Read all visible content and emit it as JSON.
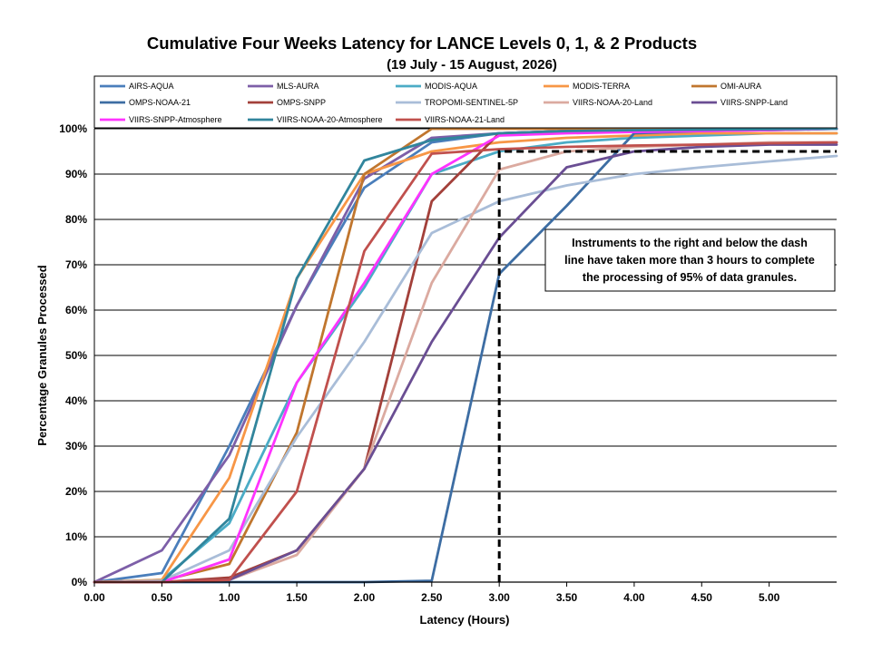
{
  "chart_data": {
    "type": "line",
    "title": "Cumulative Four Weeks Latency  for LANCE Levels 0, 1, & 2 Products",
    "subtitle": "(19  July   -  15  August,  2026)",
    "xlabel": "Latency (Hours)",
    "ylabel": "Percentage Granules Processed",
    "xlim": [
      0,
      5.5
    ],
    "ylim": [
      0,
      100
    ],
    "x_ticks": [
      "0.00",
      "0.50",
      "1.00",
      "1.50",
      "2.00",
      "2.50",
      "3.00",
      "3.50",
      "4.00",
      "4.50",
      "5.00"
    ],
    "y_ticks": [
      "0%",
      "10%",
      "20%",
      "30%",
      "40%",
      "50%",
      "60%",
      "70%",
      "80%",
      "90%",
      "100%"
    ],
    "grid": "horizontal",
    "legend_position": "top",
    "annotation": {
      "lines": [
        "Instruments to the right and below the dash",
        "line have taken more than 3 hours to complete",
        "the processing of 95% of data granules."
      ],
      "threshold_x": 3.0,
      "threshold_y": 95
    },
    "x": [
      0,
      0.5,
      1.0,
      1.5,
      2.0,
      2.5,
      3.0,
      3.5,
      4.0,
      4.5,
      5.0,
      5.5
    ],
    "series": [
      {
        "name": "AIRS-AQUA",
        "color": "#4a7ebb",
        "values": [
          0,
          2,
          30,
          61,
          87,
          97,
          99,
          99.5,
          99.7,
          99.8,
          99.9,
          100
        ]
      },
      {
        "name": "MLS-AURA",
        "color": "#7d5fa8",
        "values": [
          0,
          7,
          28,
          61,
          89,
          98,
          99,
          99.5,
          99.7,
          99.8,
          99.9,
          100
        ]
      },
      {
        "name": "MODIS-AQUA",
        "color": "#4bacc6",
        "values": [
          0,
          0.5,
          13,
          44,
          65,
          90,
          95,
          97,
          98,
          98.5,
          99,
          99
        ]
      },
      {
        "name": "MODIS-TERRA",
        "color": "#f79646",
        "values": [
          0,
          0.5,
          23,
          67,
          90,
          95,
          97,
          98,
          98.5,
          99,
          99,
          99
        ]
      },
      {
        "name": "OMI-AURA",
        "color": "#c0762e",
        "values": [
          0,
          0.3,
          4,
          33,
          90,
          100,
          100,
          100,
          100,
          100,
          100,
          100
        ]
      },
      {
        "name": "OMPS-NOAA-21",
        "color": "#3d6da3",
        "values": [
          0,
          0,
          0,
          0,
          0,
          0.3,
          68,
          83,
          99,
          99.5,
          99.7,
          100
        ]
      },
      {
        "name": "OMPS-SNPP",
        "color": "#a3403a",
        "values": [
          0,
          0,
          1,
          7,
          25,
          84,
          99,
          99.5,
          99.7,
          99.8,
          99.9,
          100
        ]
      },
      {
        "name": "TROPOMI-SENTINEL-5P",
        "color": "#a9bdd8",
        "values": [
          0,
          0.3,
          7,
          32,
          53,
          77,
          84,
          87.5,
          90,
          91.5,
          92.8,
          94
        ]
      },
      {
        "name": "VIIRS-NOAA-20-Land",
        "color": "#dbaaa0",
        "values": [
          0,
          0,
          0.5,
          6,
          25,
          66,
          91,
          95,
          96,
          96.5,
          97,
          97
        ]
      },
      {
        "name": "VIIRS-SNPP-Land",
        "color": "#6a4e93",
        "values": [
          0,
          0,
          0.5,
          7,
          25,
          53,
          76,
          91.5,
          95,
          96,
          96.5,
          96.5
        ]
      },
      {
        "name": "VIIRS-SNPP-Atmosphere",
        "color": "#ff33ff",
        "values": [
          0,
          0,
          5,
          44,
          66,
          90,
          98.5,
          99,
          99.3,
          99.5,
          99.7,
          100
        ]
      },
      {
        "name": "VIIRS-NOAA-20-Atmosphere",
        "color": "#31859c",
        "values": [
          0,
          0,
          14,
          67,
          93,
          97.5,
          99,
          99.5,
          99.7,
          99.8,
          99.9,
          100
        ]
      },
      {
        "name": "VIIRS-NOAA-21-Land",
        "color": "#c0504d",
        "values": [
          0,
          0,
          0.5,
          20,
          73,
          94.5,
          95.5,
          96,
          96.3,
          96.5,
          96.8,
          97
        ]
      }
    ]
  }
}
